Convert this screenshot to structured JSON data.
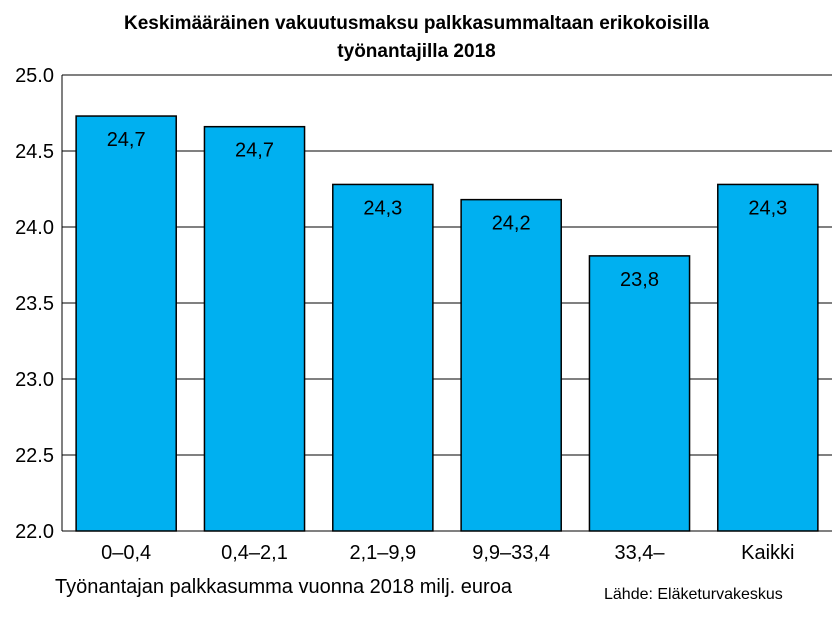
{
  "title_lines": [
    "Keskimääräinen vakuutusmaksu palkkasummaltaan erikokoisilla",
    "työnantajilla 2018"
  ],
  "x_axis_title": "Työnantajan palkkasumma vuonna 2018 milj. euroa",
  "source": "Lähde: Eläketurvakeskus",
  "colors": {
    "bar": "#00B0F0",
    "bar_stroke": "#000000",
    "grid": "#000000"
  },
  "chart_data": {
    "type": "bar",
    "title": "Keskimääräinen vakuutusmaksu palkkasummaltaan erikokoisilla työnantajilla 2018",
    "xlabel": "Työnantajan palkkasumma vuonna 2018 milj. euroa",
    "ylabel": "",
    "categories": [
      "0–0,4",
      "0,4–2,1",
      "2,1–9,9",
      "9,9–33,4",
      "33,4–",
      "Kaikki"
    ],
    "values": [
      24.73,
      24.66,
      24.28,
      24.18,
      23.81,
      24.28
    ],
    "data_labels": [
      "24,7",
      "24,7",
      "24,3",
      "24,2",
      "23,8",
      "24,3"
    ],
    "ylim": [
      22.0,
      25.0
    ],
    "yticks": [
      22.0,
      22.5,
      23.0,
      23.5,
      24.0,
      24.5,
      25.0
    ],
    "ytick_labels": [
      "22.0",
      "22.5",
      "23.0",
      "23.5",
      "24.0",
      "24.5",
      "25.0"
    ],
    "grid": true,
    "legend": "none"
  }
}
